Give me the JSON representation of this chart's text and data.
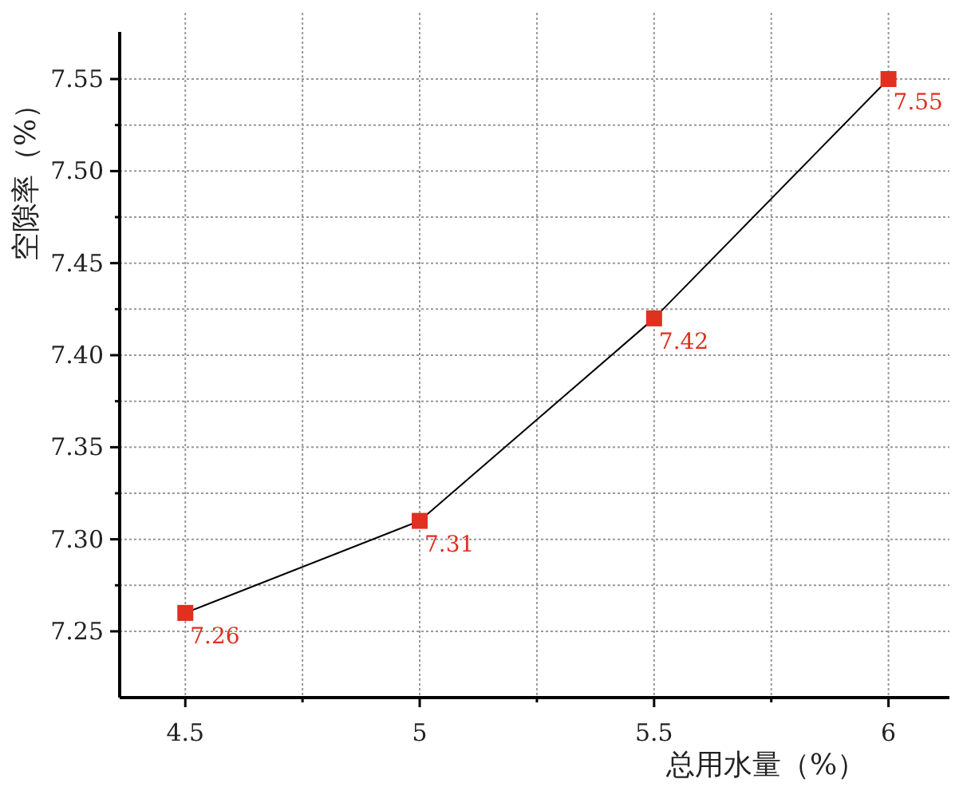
{
  "chart_data": {
    "type": "line",
    "xlabel": "总用水量（%）",
    "ylabel": "空隙率（%）",
    "x": [
      4.5,
      5,
      5.5,
      6
    ],
    "series": [
      {
        "color": "#e03020",
        "values": [
          7.26,
          7.31,
          7.42,
          7.55
        ]
      }
    ],
    "xlim": [
      4.36,
      6.13
    ],
    "ylim": [
      7.214,
      7.586
    ],
    "xticks": [
      4.5,
      {
        "value": 4.75,
        "label": null
      },
      5,
      {
        "value": 5.25,
        "label": null
      },
      5.5,
      {
        "value": 5.75,
        "label": null
      },
      6
    ],
    "yticks": [
      {
        "value": 7.25,
        "label": "7.25"
      },
      {
        "value": 7.275,
        "label": null
      },
      {
        "value": 7.3,
        "label": "7.30"
      },
      {
        "value": 7.325,
        "label": null
      },
      {
        "value": 7.35,
        "label": "7.35"
      },
      {
        "value": 7.375,
        "label": null
      },
      {
        "value": 7.4,
        "label": "7.40"
      },
      {
        "value": 7.425,
        "label": null
      },
      {
        "value": 7.45,
        "label": "7.45"
      },
      {
        "value": 7.475,
        "label": null
      },
      {
        "value": 7.5,
        "label": "7.50"
      },
      {
        "value": 7.525,
        "label": null
      },
      {
        "value": 7.55,
        "label": "7.55"
      }
    ],
    "grid": true,
    "marker": "square",
    "line_style": "solid",
    "data_labels": true
  }
}
